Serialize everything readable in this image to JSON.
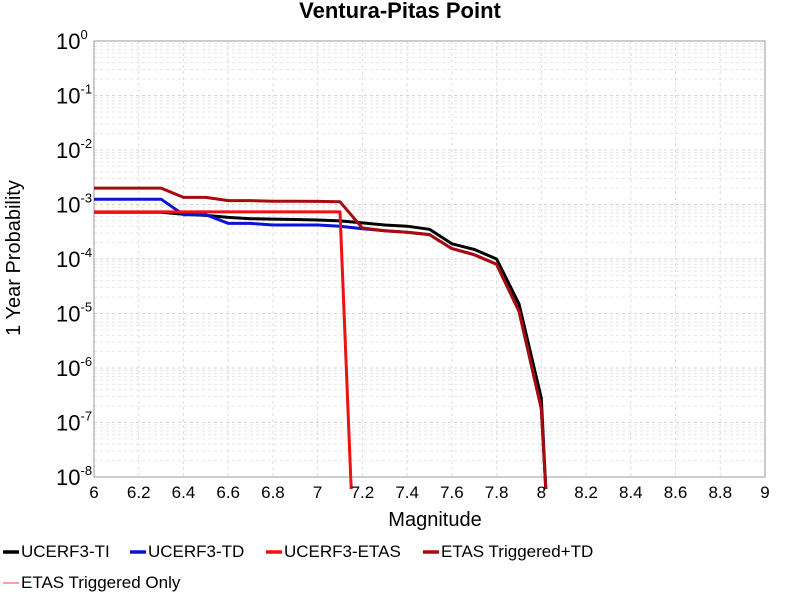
{
  "chart_data": {
    "type": "line",
    "title": "Ventura-Pitas Point",
    "xlabel": "Magnitude",
    "ylabel": "1 Year Probability",
    "xlim": [
      6,
      9
    ],
    "ylim": [
      1e-08,
      1
    ],
    "yscale": "log",
    "grid": true,
    "legend_position": "bottom",
    "x_ticks": [
      "6",
      "6.2",
      "6.4",
      "6.6",
      "6.8",
      "7",
      "7.2",
      "7.4",
      "7.6",
      "7.8",
      "8",
      "8.2",
      "8.4",
      "8.6",
      "8.8",
      "9"
    ],
    "y_ticks": [
      {
        "base": "10",
        "exp": "0"
      },
      {
        "base": "10",
        "exp": "-1"
      },
      {
        "base": "10",
        "exp": "-2"
      },
      {
        "base": "10",
        "exp": "-3"
      },
      {
        "base": "10",
        "exp": "-4"
      },
      {
        "base": "10",
        "exp": "-5"
      },
      {
        "base": "10",
        "exp": "-6"
      },
      {
        "base": "10",
        "exp": "-7"
      },
      {
        "base": "10",
        "exp": "-8"
      }
    ],
    "series": [
      {
        "name": "UCERF3-TI",
        "color": "#000000",
        "width": 3,
        "x": [
          6.0,
          6.1,
          6.2,
          6.3,
          6.4,
          6.5,
          6.6,
          6.7,
          6.8,
          6.9,
          7.0,
          7.1,
          7.2,
          7.3,
          7.4,
          7.5,
          7.6,
          7.7,
          7.8,
          7.9,
          8.0,
          8.02
        ],
        "y": [
          0.00072,
          0.00072,
          0.00072,
          0.00072,
          0.00066,
          0.00063,
          0.00058,
          0.00055,
          0.00054,
          0.00053,
          0.00052,
          0.0005,
          0.00046,
          0.00042,
          0.0004,
          0.00035,
          0.00019,
          0.00015,
          0.0001,
          1.5e-05,
          2.8e-07,
          6e-09
        ]
      },
      {
        "name": "UCERF3-TD",
        "color": "#0a14d8",
        "width": 3,
        "x": [
          6.0,
          6.1,
          6.2,
          6.3,
          6.4,
          6.5,
          6.6,
          6.7,
          6.8,
          6.9,
          7.0,
          7.1,
          7.2,
          7.3,
          7.4,
          7.5,
          7.6,
          7.7,
          7.8,
          7.9,
          8.0,
          8.02
        ],
        "y": [
          0.00125,
          0.00125,
          0.00125,
          0.00125,
          0.00065,
          0.00065,
          0.00045,
          0.00045,
          0.00042,
          0.00042,
          0.00042,
          0.0004,
          0.00036,
          0.00033,
          0.00031,
          0.00028,
          0.000155,
          0.00012,
          8e-05,
          1.1e-05,
          1.8e-07,
          6e-09
        ]
      },
      {
        "name": "UCERF3-ETAS",
        "color": "#ee1111",
        "width": 3,
        "x": [
          6.0,
          6.1,
          6.2,
          6.3,
          6.4,
          6.5,
          6.6,
          6.7,
          6.8,
          6.9,
          7.0,
          7.1,
          7.15
        ],
        "y": [
          0.00073,
          0.00073,
          0.00073,
          0.00073,
          0.00073,
          0.00073,
          0.00073,
          0.00073,
          0.00073,
          0.00073,
          0.00073,
          0.00073,
          6e-09
        ]
      },
      {
        "name": "ETAS Triggered+TD",
        "color": "#aa0a0a",
        "width": 3,
        "x": [
          6.0,
          6.1,
          6.2,
          6.3,
          6.4,
          6.5,
          6.6,
          6.7,
          6.8,
          6.9,
          7.0,
          7.1,
          7.2,
          7.3,
          7.4,
          7.5,
          7.6,
          7.7,
          7.8,
          7.9,
          8.0,
          8.02
        ],
        "y": [
          0.002,
          0.002,
          0.002,
          0.002,
          0.00135,
          0.00135,
          0.00118,
          0.00118,
          0.00115,
          0.00115,
          0.00114,
          0.00112,
          0.00037,
          0.00033,
          0.00031,
          0.00028,
          0.000155,
          0.00012,
          8e-05,
          1.1e-05,
          1.8e-07,
          6e-09
        ]
      },
      {
        "name": "ETAS Triggered Only",
        "color": "#ff8080",
        "width": 1,
        "x": [],
        "y": []
      }
    ]
  }
}
